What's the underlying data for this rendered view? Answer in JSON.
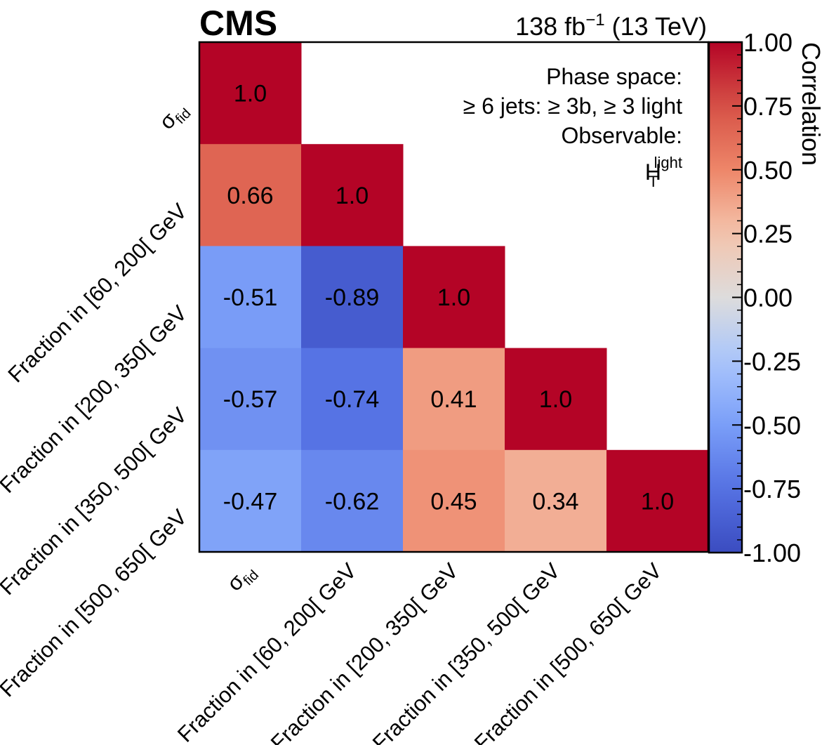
{
  "header": {
    "experiment": "CMS",
    "lumi_value": "138 fb",
    "lumi_exp": "−1",
    "energy": "(13 TeV)"
  },
  "info": {
    "line1": "Phase space:",
    "line2": "≥ 6 jets:  ≥ 3b,  ≥ 3 light",
    "line3": "Observable:",
    "obs_main": "H",
    "obs_sup": "light",
    "obs_sub": "T"
  },
  "chart_data": {
    "type": "heatmap",
    "title": "",
    "triangle": "lower",
    "labels": [
      {
        "main": "σ",
        "sub": "fid"
      },
      {
        "main": "Fraction in [60, 200[ GeV"
      },
      {
        "main": "Fraction in [200, 350[ GeV"
      },
      {
        "main": "Fraction in [350, 500[ GeV"
      },
      {
        "main": "Fraction in [500, 650[ GeV"
      }
    ],
    "matrix": [
      [
        1.0,
        null,
        null,
        null,
        null
      ],
      [
        0.66,
        1.0,
        null,
        null,
        null
      ],
      [
        -0.51,
        -0.89,
        1.0,
        null,
        null
      ],
      [
        -0.57,
        -0.74,
        0.41,
        1.0,
        null
      ],
      [
        -0.47,
        -0.62,
        0.45,
        0.34,
        1.0
      ]
    ],
    "cell_text": [
      [
        "1.0",
        null,
        null,
        null,
        null
      ],
      [
        "0.66",
        "1.0",
        null,
        null,
        null
      ],
      [
        "-0.51",
        "-0.89",
        "1.0",
        null,
        null
      ],
      [
        "-0.57",
        "-0.74",
        "0.41",
        "1.0",
        null
      ],
      [
        "-0.47",
        "-0.62",
        "0.45",
        "0.34",
        "1.0"
      ]
    ],
    "colorbar": {
      "label": "Correlation",
      "range": [
        -1.0,
        1.0
      ],
      "ticks": [
        "1.00",
        "0.75",
        "0.50",
        "0.25",
        "0.00",
        "-0.25",
        "-0.50",
        "-0.75",
        "-1.00"
      ],
      "tick_values": [
        1.0,
        0.75,
        0.5,
        0.25,
        0.0,
        -0.25,
        -0.5,
        -0.75,
        -1.0
      ],
      "colormap": "coolwarm"
    }
  }
}
